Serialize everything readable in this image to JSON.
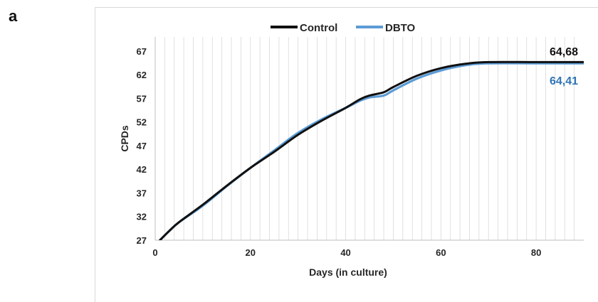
{
  "panel_label": "a",
  "colors": {
    "control": "#111111",
    "dbto": "#5b9bd5",
    "dbto_label": "#2e75b6",
    "grid": "#d9d9d9"
  },
  "chart_data": {
    "type": "line",
    "title": "",
    "xlabel": "Days (in culture)",
    "ylabel": "CPDs",
    "xlim": [
      0,
      90
    ],
    "ylim": [
      27,
      70
    ],
    "x_ticks": [
      0,
      20,
      40,
      60,
      80
    ],
    "y_ticks": [
      27,
      32,
      37,
      42,
      47,
      52,
      57,
      62,
      67
    ],
    "grid": "vertical",
    "legend_position": "top-center",
    "series": [
      {
        "name": "Control",
        "end_label": "64,68",
        "points": [
          [
            1,
            27
          ],
          [
            3,
            29
          ],
          [
            5,
            30.8
          ],
          [
            10,
            34.5
          ],
          [
            15,
            38.5
          ],
          [
            20,
            42.3
          ],
          [
            25,
            45.7
          ],
          [
            30,
            49.3
          ],
          [
            35,
            52.3
          ],
          [
            40,
            55
          ],
          [
            43,
            56.8
          ],
          [
            45,
            57.6
          ],
          [
            48,
            58.3
          ],
          [
            50,
            59.4
          ],
          [
            55,
            61.8
          ],
          [
            60,
            63.4
          ],
          [
            65,
            64.3
          ],
          [
            70,
            64.68
          ],
          [
            80,
            64.68
          ],
          [
            90,
            64.68
          ]
        ]
      },
      {
        "name": "DBTO",
        "end_label": "64,41",
        "points": [
          [
            1,
            27
          ],
          [
            3,
            29
          ],
          [
            5,
            30.8
          ],
          [
            10,
            34.3
          ],
          [
            15,
            38.4
          ],
          [
            20,
            42.3
          ],
          [
            25,
            46
          ],
          [
            30,
            49.7
          ],
          [
            35,
            52.6
          ],
          [
            40,
            55
          ],
          [
            43,
            56.5
          ],
          [
            45,
            57.2
          ],
          [
            48,
            57.6
          ],
          [
            50,
            58.7
          ],
          [
            55,
            61.2
          ],
          [
            60,
            62.9
          ],
          [
            65,
            64
          ],
          [
            70,
            64.41
          ],
          [
            80,
            64.41
          ],
          [
            90,
            64.41
          ]
        ]
      }
    ]
  }
}
